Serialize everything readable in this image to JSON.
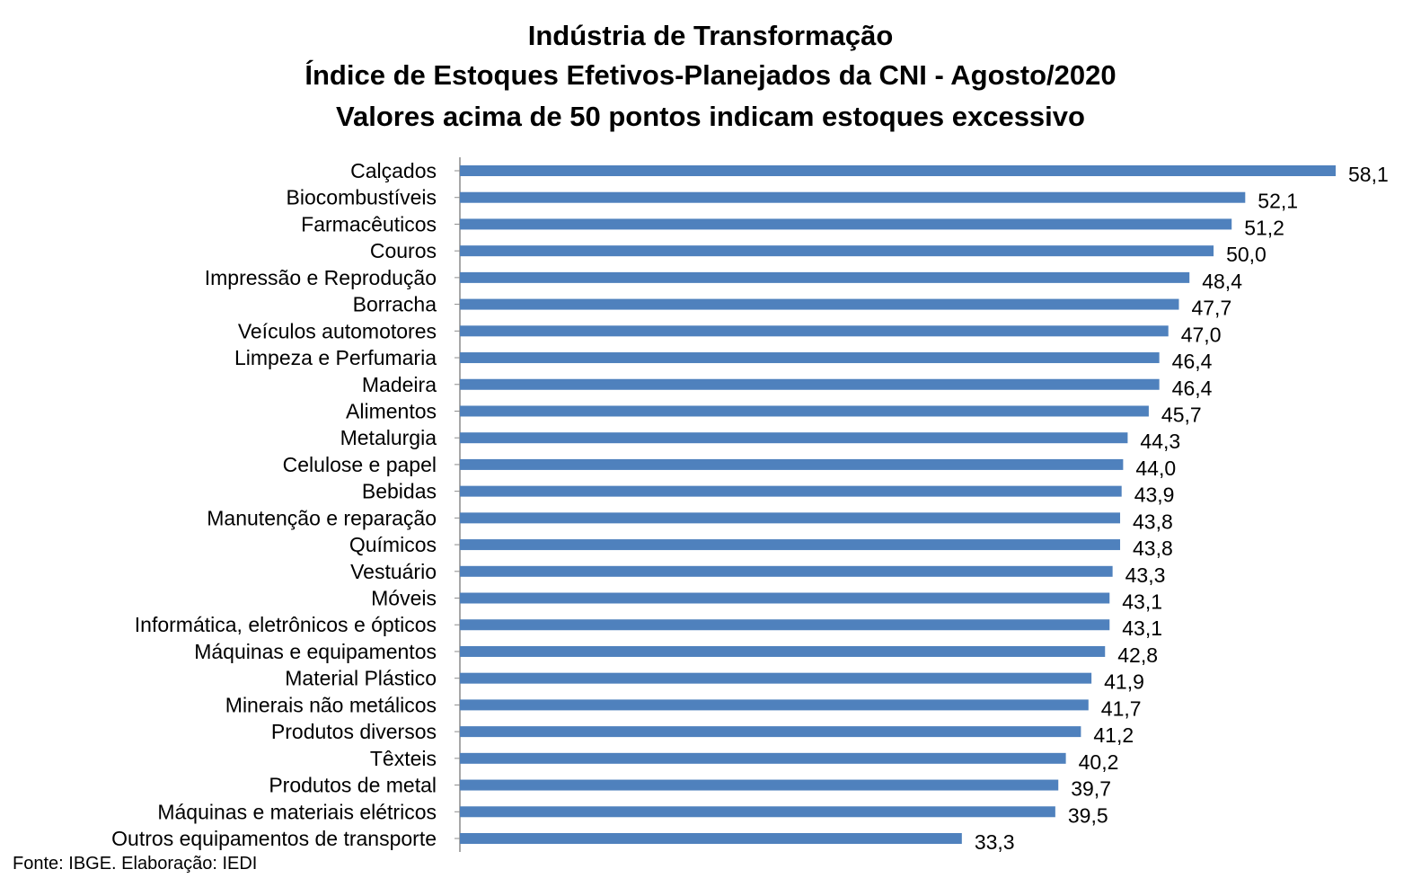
{
  "title_lines": [
    "Indústria de Transformação",
    "Índice de Estoques Efetivos-Planejados da CNI - Agosto/2020",
    "Valores acima de 50 pontos indicam estoques excessivo"
  ],
  "source": "Fonte: IBGE. Elaboração: IEDI",
  "chart_data": {
    "type": "bar",
    "orientation": "horizontal",
    "title": "Indústria de Transformação\nÍndice de Estoques Efetivos-Planejados da CNI - Agosto/2020\nValores acima de 50 pontos indicam estoques excessivo",
    "bar_color": "#4f81bd",
    "grid": false,
    "categories": [
      "Calçados",
      "Biocombustíveis",
      "Farmacêuticos",
      "Couros",
      "Impressão e Reprodução",
      "Borracha",
      "Veículos automotores",
      "Limpeza e Perfumaria",
      "Madeira",
      "Alimentos",
      "Metalurgia",
      "Celulose e papel",
      "Bebidas",
      "Manutenção e reparação",
      "Químicos",
      "Vestuário",
      "Móveis",
      "Informática, eletrônicos e ópticos",
      "Máquinas e equipamentos",
      "Material Plástico",
      "Minerais não metálicos",
      "Produtos diversos",
      "Têxteis",
      "Produtos de metal",
      "Máquinas e materiais elétricos",
      "Outros equipamentos de transporte"
    ],
    "values": [
      58.1,
      52.1,
      51.2,
      50.0,
      48.4,
      47.7,
      47.0,
      46.4,
      46.4,
      45.7,
      44.3,
      44.0,
      43.9,
      43.8,
      43.8,
      43.3,
      43.1,
      43.1,
      42.8,
      41.9,
      41.7,
      41.2,
      40.2,
      39.7,
      39.5,
      33.3
    ],
    "value_labels": [
      "58,1",
      "52,1",
      "51,2",
      "50,0",
      "48,4",
      "47,7",
      "47,0",
      "46,4",
      "46,4",
      "45,7",
      "44,3",
      "44,0",
      "43,9",
      "43,8",
      "43,8",
      "43,3",
      "43,1",
      "43,1",
      "42,8",
      "41,9",
      "41,7",
      "41,2",
      "40,2",
      "39,7",
      "39,5",
      "33,3"
    ],
    "xlim": [
      0,
      58.1
    ]
  }
}
